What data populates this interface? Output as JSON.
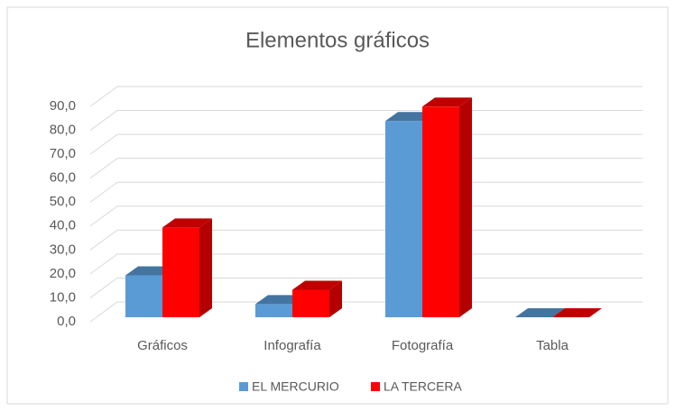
{
  "chart_data": {
    "type": "bar3d",
    "title": "Elementos gráficos",
    "categories": [
      "Gráficos",
      "Infografía",
      "Fotografía",
      "Tabla"
    ],
    "series": [
      {
        "name": "EL MERCURIO",
        "color": "#5b9bd5",
        "values": [
          17.5,
          5.5,
          82,
          0
        ]
      },
      {
        "name": "LA TERCERA",
        "color": "#ff0000",
        "values": [
          37.5,
          11.5,
          88,
          0
        ]
      }
    ],
    "ylim": [
      0,
      90
    ],
    "yticks": [
      {
        "value": 0,
        "label": "0,0"
      },
      {
        "value": 10,
        "label": "10,0"
      },
      {
        "value": 20,
        "label": "20,0"
      },
      {
        "value": 30,
        "label": "30,0"
      },
      {
        "value": 40,
        "label": "40,0"
      },
      {
        "value": 50,
        "label": "50,0"
      },
      {
        "value": 60,
        "label": "60,0"
      },
      {
        "value": 70,
        "label": "70,0"
      },
      {
        "value": 80,
        "label": "80,0"
      },
      {
        "value": 90,
        "label": "90,0"
      }
    ],
    "grid": true,
    "legend": "bottom"
  }
}
